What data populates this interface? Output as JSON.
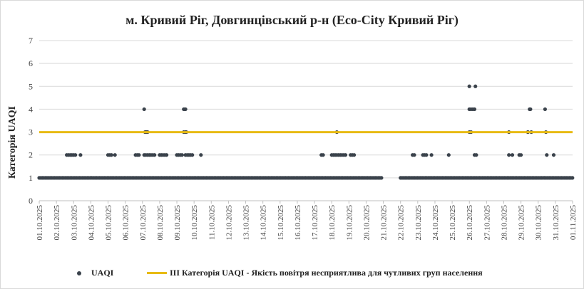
{
  "chart_data": {
    "type": "scatter",
    "title": "м. Кривий Ріг, Довгинцівський р-н (Eco-City Кривий Ріг)",
    "ylabel": "Категорія UAQI",
    "xlabel": "",
    "ylim": [
      0,
      7
    ],
    "yticks": [
      0,
      1,
      2,
      3,
      4,
      5,
      6,
      7
    ],
    "x_tick_labels": [
      "01.10.2025",
      "02.10.2025",
      "03.10.2025",
      "04.10.2025",
      "05.10.2025",
      "06.10.2025",
      "07.10.2025",
      "08.10.2025",
      "09.10.2025",
      "10.10.2025",
      "11.10.2025",
      "12.10.2025",
      "13.10.2025",
      "14.10.2025",
      "15.10.2025",
      "16.10.2025",
      "17.10.2025",
      "18.10.2025",
      "19.10.2025",
      "20.10.2025",
      "21.10.2025",
      "22.10.2025",
      "23.10.2025",
      "24.10.2025",
      "25.10.2025",
      "26.10.2025",
      "27.10.2025",
      "28.10.2025",
      "29.10.2025",
      "30.10.2025",
      "31.10.2025",
      "01.11.2025"
    ],
    "grid": "horizontal",
    "legend_position": "bottom",
    "series": [
      {
        "name": "UAQI",
        "kind": "hourly points (date offset in days from 01.10.2025, category)",
        "color": "#3a424b",
        "baseline_ranges": [
          [
            0,
            19.9,
            1
          ],
          [
            21.0,
            31.0,
            1
          ]
        ],
        "points": [
          [
            1.6,
            2
          ],
          [
            1.7,
            2
          ],
          [
            1.8,
            2
          ],
          [
            1.9,
            2
          ],
          [
            2.0,
            2
          ],
          [
            2.1,
            2
          ],
          [
            2.4,
            2
          ],
          [
            4.0,
            2
          ],
          [
            4.1,
            2
          ],
          [
            4.2,
            2
          ],
          [
            4.4,
            2
          ],
          [
            5.6,
            2
          ],
          [
            5.7,
            2
          ],
          [
            5.8,
            2
          ],
          [
            6.1,
            4
          ],
          [
            6.15,
            3
          ],
          [
            6.2,
            3
          ],
          [
            6.25,
            3
          ],
          [
            6.3,
            3
          ],
          [
            6.1,
            2
          ],
          [
            6.2,
            2
          ],
          [
            6.3,
            2
          ],
          [
            6.4,
            2
          ],
          [
            6.5,
            2
          ],
          [
            6.6,
            2
          ],
          [
            6.7,
            2
          ],
          [
            7.0,
            2
          ],
          [
            7.1,
            2
          ],
          [
            7.2,
            2
          ],
          [
            7.3,
            2
          ],
          [
            7.4,
            2
          ],
          [
            8.0,
            2
          ],
          [
            8.1,
            2
          ],
          [
            8.2,
            2
          ],
          [
            8.3,
            2
          ],
          [
            8.4,
            4
          ],
          [
            8.45,
            4
          ],
          [
            8.5,
            4
          ],
          [
            8.4,
            3
          ],
          [
            8.5,
            3
          ],
          [
            8.55,
            3
          ],
          [
            8.5,
            2
          ],
          [
            8.6,
            2
          ],
          [
            8.7,
            2
          ],
          [
            8.8,
            2
          ],
          [
            8.9,
            2
          ],
          [
            9.4,
            2
          ],
          [
            16.4,
            2
          ],
          [
            16.5,
            2
          ],
          [
            17.0,
            2
          ],
          [
            17.1,
            2
          ],
          [
            17.2,
            2
          ],
          [
            17.3,
            2
          ],
          [
            17.4,
            2
          ],
          [
            17.5,
            2
          ],
          [
            17.6,
            2
          ],
          [
            17.7,
            2
          ],
          [
            17.8,
            2
          ],
          [
            17.3,
            3
          ],
          [
            18.1,
            2
          ],
          [
            18.2,
            2
          ],
          [
            18.3,
            2
          ],
          [
            21.7,
            2
          ],
          [
            21.8,
            2
          ],
          [
            22.3,
            2
          ],
          [
            22.4,
            2
          ],
          [
            22.5,
            2
          ],
          [
            22.8,
            2
          ],
          [
            23.8,
            2
          ],
          [
            25.0,
            5
          ],
          [
            25.0,
            4
          ],
          [
            25.1,
            4
          ],
          [
            25.2,
            4
          ],
          [
            25.3,
            4
          ],
          [
            25.35,
            5
          ],
          [
            25.0,
            3
          ],
          [
            25.1,
            3
          ],
          [
            25.3,
            2
          ],
          [
            25.4,
            2
          ],
          [
            27.3,
            3
          ],
          [
            27.3,
            2
          ],
          [
            27.5,
            2
          ],
          [
            27.9,
            2
          ],
          [
            28.0,
            2
          ],
          [
            28.4,
            3
          ],
          [
            28.5,
            4
          ],
          [
            28.55,
            4
          ],
          [
            28.6,
            3
          ],
          [
            28.4,
            3
          ],
          [
            29.4,
            4
          ],
          [
            29.45,
            3
          ],
          [
            29.5,
            2
          ],
          [
            29.9,
            2
          ]
        ]
      },
      {
        "name": "ІІІ Категорія  UAQI  - Якість повітря  несприятлива   для чутливих   груп  населення",
        "kind": "constant line",
        "color": "#e8bb14",
        "value": 3
      }
    ]
  }
}
